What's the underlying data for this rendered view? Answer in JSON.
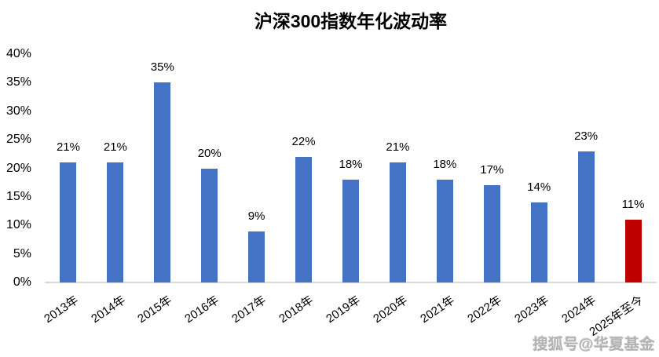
{
  "chart_data": {
    "type": "bar",
    "title": "沪深300指数年化波动率",
    "categories": [
      "2013年",
      "2014年",
      "2015年",
      "2016年",
      "2017年",
      "2018年",
      "2019年",
      "2020年",
      "2021年",
      "2022年",
      "2023年",
      "2024年",
      "2025年至今"
    ],
    "values": [
      21,
      21,
      35,
      20,
      9,
      22,
      18,
      21,
      18,
      17,
      14,
      23,
      11
    ],
    "data_labels": [
      "21%",
      "21%",
      "35%",
      "20%",
      "9%",
      "22%",
      "18%",
      "21%",
      "18%",
      "17%",
      "14%",
      "23%",
      "11%"
    ],
    "ytick_labels": [
      "0%",
      "5%",
      "10%",
      "15%",
      "20%",
      "25%",
      "30%",
      "35%",
      "40%"
    ],
    "ylim": [
      0,
      40
    ],
    "ytick_step": 5,
    "xlabel": "",
    "ylabel": "",
    "grid": false,
    "legend": "none",
    "bar_color_default": "#4472C4",
    "bar_color_highlight": "#C00000",
    "highlight_index": 12,
    "axis_line_color": "#d9d9d9",
    "x_label_rotation_deg": -34
  },
  "watermark": {
    "text": "搜狐号@华夏基金"
  }
}
